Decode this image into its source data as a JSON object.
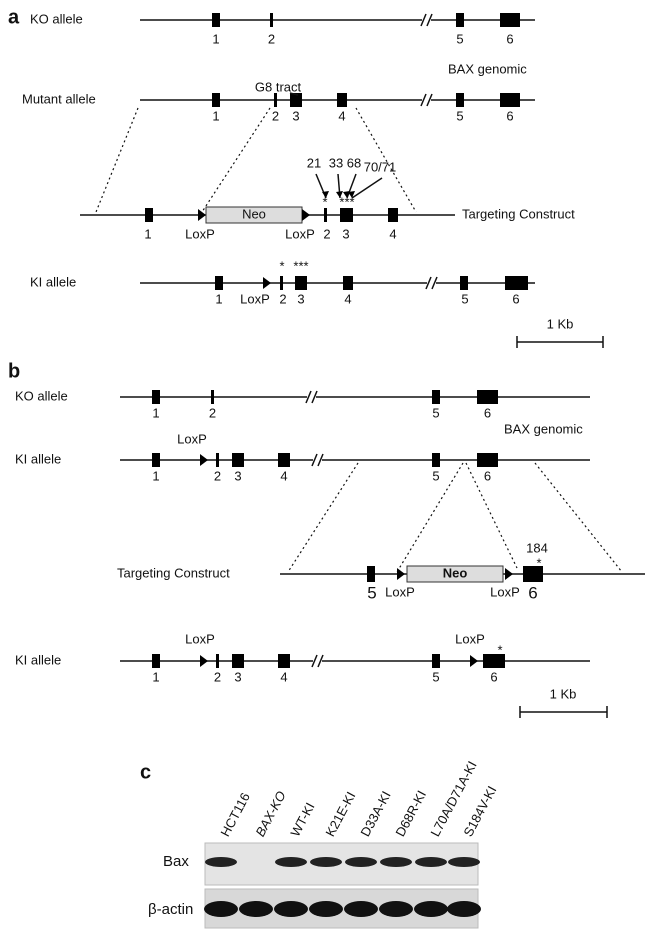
{
  "panel_a": {
    "label": "a",
    "genomic_label": "BAX genomic",
    "ko_allele": {
      "name": "KO allele",
      "exons": [
        "1",
        "2",
        "5",
        "6"
      ]
    },
    "mutant_allele": {
      "name": "Mutant allele",
      "exons": [
        "1",
        "2",
        "3",
        "4",
        "5",
        "6"
      ],
      "annotation": "G8 tract"
    },
    "targeting_construct": {
      "name": "Targeting Construct",
      "cassette": "Neo",
      "sites": [
        "LoxP",
        "LoxP"
      ],
      "exons": [
        "1",
        "2",
        "3",
        "4"
      ],
      "mutations": [
        "21",
        "33",
        "68",
        "70/71"
      ],
      "markers": [
        "*",
        "***"
      ]
    },
    "ki_allele": {
      "name": "KI allele",
      "site": "LoxP",
      "exons": [
        "1",
        "2",
        "3",
        "4",
        "5",
        "6"
      ],
      "markers": [
        "*",
        "***"
      ]
    },
    "scale_bar": "1 Kb"
  },
  "panel_b": {
    "label": "b",
    "genomic_label": "BAX genomic",
    "ko_allele": {
      "name": "KO allele",
      "exons": [
        "1",
        "2",
        "5",
        "6"
      ]
    },
    "ki_allele_1": {
      "name": "KI allele",
      "site": "LoxP",
      "exons": [
        "1",
        "2",
        "3",
        "4",
        "5",
        "6"
      ]
    },
    "targeting_construct": {
      "name": "Targeting Construct",
      "cassette": "Neo",
      "sites": [
        "LoxP",
        "LoxP"
      ],
      "exons": [
        "5",
        "6"
      ],
      "mutation": "184",
      "marker": "*"
    },
    "ki_allele_2": {
      "name": "KI allele",
      "sites": [
        "LoxP",
        "LoxP"
      ],
      "exons": [
        "1",
        "2",
        "3",
        "4",
        "5",
        "6"
      ],
      "marker": "*"
    },
    "scale_bar": "1 Kb"
  },
  "panel_c": {
    "label": "c",
    "lanes": [
      "HCT116",
      "BAX-KO",
      "WT-KI",
      "K21E-KI",
      "D33A-KI",
      "D68R-KI",
      "L70A/D71A-KI",
      "S184V-KI"
    ],
    "rows": [
      "Bax",
      "β-actin"
    ]
  }
}
